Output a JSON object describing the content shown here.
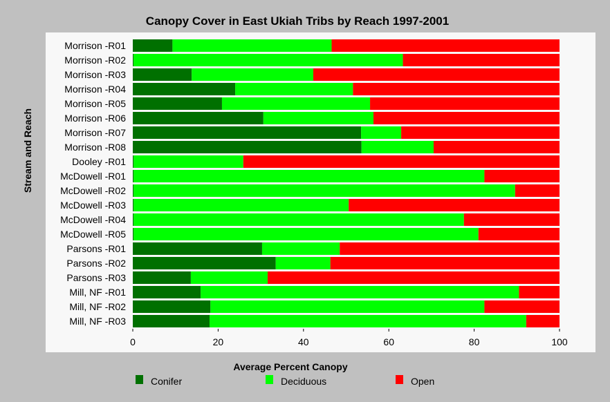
{
  "chart_data": {
    "type": "bar",
    "orientation": "horizontal",
    "stacked": true,
    "title": "Canopy Cover in East Ukiah Tribs by Reach 1997-2001",
    "xlabel": "Average Percent Canopy",
    "ylabel": "Stream and Reach",
    "xlim": [
      0,
      100
    ],
    "xticks": [
      0,
      20,
      40,
      60,
      80,
      100
    ],
    "grid": false,
    "legend_position": "bottom",
    "categories": [
      "Morrison -R01",
      "Morrison -R02",
      "Morrison -R03",
      "Morrison -R04",
      "Morrison -R05",
      "Morrison -R06",
      "Morrison -R07",
      "Morrison -R08",
      "Dooley -R01",
      "McDowell -R01",
      "McDowell -R02",
      "McDowell -R03",
      "McDowell -R04",
      "McDowell -R05",
      "Parsons -R01",
      "Parsons -R02",
      "Parsons -R03",
      "Mill, NF -R01",
      "Mill, NF -R02",
      "Mill, NF -R03"
    ],
    "series": [
      {
        "name": "Conifer",
        "color": "#007000",
        "values": [
          9.3,
          0.2,
          13.8,
          24.0,
          20.9,
          30.6,
          53.5,
          53.6,
          0.2,
          0.2,
          0.2,
          0.2,
          0.2,
          0.2,
          30.3,
          33.5,
          13.6,
          15.9,
          18.2,
          18.0
        ]
      },
      {
        "name": "Deciduous",
        "color": "#00ff00",
        "values": [
          37.3,
          63.1,
          28.5,
          27.6,
          34.7,
          25.8,
          9.4,
          16.9,
          25.7,
          82.2,
          89.4,
          50.4,
          77.4,
          80.8,
          18.2,
          12.8,
          18.0,
          74.6,
          64.2,
          74.2
        ]
      },
      {
        "name": "Open",
        "color": "#ff0000",
        "values": [
          53.4,
          36.7,
          57.7,
          48.4,
          44.4,
          43.6,
          37.1,
          29.5,
          74.1,
          17.6,
          10.4,
          49.4,
          22.4,
          19.0,
          51.5,
          53.7,
          68.4,
          9.5,
          17.6,
          7.8
        ]
      }
    ]
  }
}
